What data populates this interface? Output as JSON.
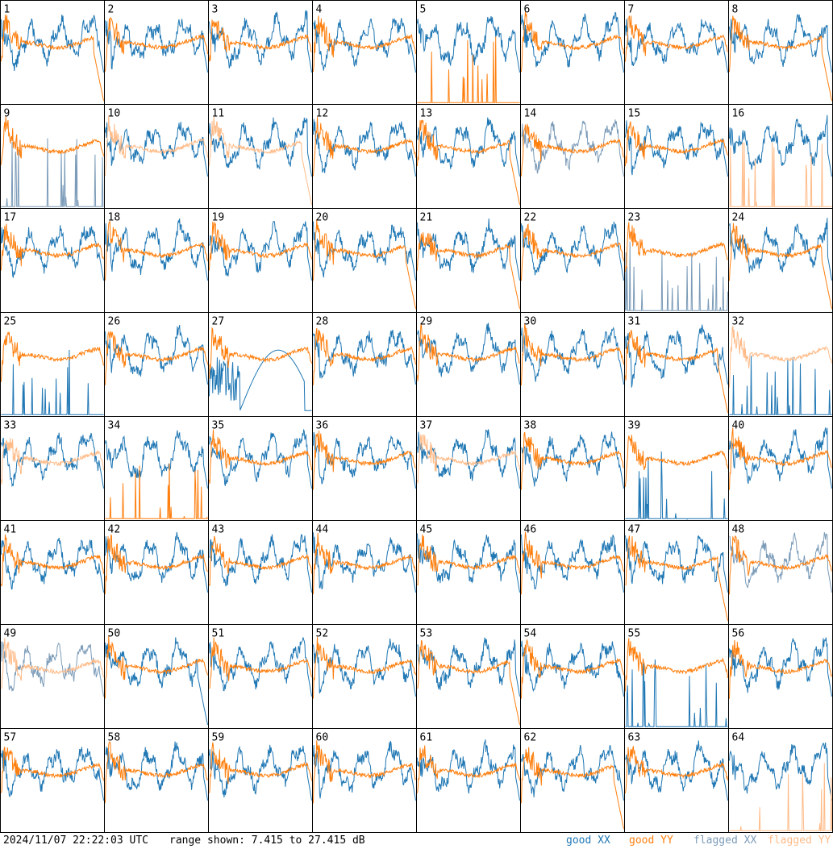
{
  "chart_data": {
    "type": "line",
    "panels": 64,
    "columns": 8,
    "rows": 8,
    "labels": [
      "1",
      "2",
      "3",
      "4",
      "5",
      "6",
      "7",
      "8",
      "9",
      "10",
      "11",
      "12",
      "13",
      "14",
      "15",
      "16",
      "17",
      "18",
      "19",
      "20",
      "21",
      "22",
      "23",
      "24",
      "25",
      "26",
      "27",
      "28",
      "29",
      "30",
      "31",
      "32",
      "33",
      "34",
      "35",
      "36",
      "37",
      "38",
      "39",
      "40",
      "41",
      "42",
      "43",
      "44",
      "45",
      "46",
      "47",
      "48",
      "49",
      "50",
      "51",
      "52",
      "53",
      "54",
      "55",
      "56",
      "57",
      "58",
      "59",
      "60",
      "61",
      "62",
      "63",
      "64"
    ],
    "y_unit": "dB",
    "ylim": [
      7.415,
      27.415
    ],
    "series": [
      {
        "name": "good XX",
        "color": "#1f77b4"
      },
      {
        "name": "good YY",
        "color": "#ff7f0e"
      },
      {
        "name": "flagged XX",
        "color": "#7b9bb8"
      },
      {
        "name": "flagged YY",
        "color": "#ffbb88"
      }
    ],
    "panel_states": {
      "1": {
        "x": "good",
        "y": "good",
        "yshape": "drop"
      },
      "5": {
        "x": "good",
        "y": "good",
        "yshape": "spikes"
      },
      "8": {
        "x": "good",
        "y": "good",
        "yshape": "drop"
      },
      "9": {
        "x": "flagged",
        "y": "good",
        "xshape": "spikes"
      },
      "10": {
        "x": "good",
        "y": "flagged"
      },
      "11": {
        "x": "good",
        "y": "flagged",
        "yshape": "drop"
      },
      "13": {
        "x": "good",
        "y": "good",
        "yshape": "drop"
      },
      "14": {
        "x": "flagged",
        "y": "good"
      },
      "16": {
        "x": "good",
        "y": "flagged",
        "yshape": "spikes"
      },
      "20": {
        "x": "good",
        "y": "good",
        "yshape": "drop"
      },
      "21": {
        "x": "good",
        "y": "good",
        "yshape": "drop"
      },
      "23": {
        "x": "flagged",
        "y": "good",
        "xshape": "spikes"
      },
      "24": {
        "x": "good",
        "y": "good",
        "yshape": "drop"
      },
      "25": {
        "x": "good",
        "y": "good",
        "xshape": "spikes"
      },
      "27": {
        "x": "good",
        "y": "good",
        "xshape": "bumpy"
      },
      "31": {
        "x": "good",
        "y": "good",
        "yshape": "drop"
      },
      "32": {
        "x": "good",
        "y": "flagged",
        "xshape": "spikes"
      },
      "33": {
        "x": "good",
        "y": "flagged"
      },
      "34": {
        "x": "good",
        "y": "good",
        "yshape": "spikes"
      },
      "37": {
        "x": "good",
        "y": "flagged"
      },
      "39": {
        "x": "good",
        "y": "good",
        "xshape": "spikes"
      },
      "47": {
        "x": "good",
        "y": "good",
        "yshape": "drop"
      },
      "48": {
        "x": "flagged",
        "y": "good"
      },
      "49": {
        "x": "flagged",
        "y": "flagged"
      },
      "50": {
        "x": "good",
        "y": "good",
        "xshape": "drop"
      },
      "53": {
        "x": "good",
        "y": "good",
        "yshape": "drop"
      },
      "55": {
        "x": "good",
        "y": "good",
        "xshape": "spikes"
      },
      "62": {
        "x": "good",
        "y": "good",
        "yshape": "drop"
      },
      "64": {
        "x": "good",
        "y": "flagged",
        "yshape": "spikes"
      }
    }
  },
  "footer": {
    "timestamp": "2024/11/07 22:22:03 UTC",
    "range_text": "range shown: 7.415 to 27.415 dB",
    "legend_good_xx": "good XX",
    "legend_good_yy": "good YY",
    "legend_flagged_xx": "flagged XX",
    "legend_flagged_yy": "flagged YY"
  }
}
